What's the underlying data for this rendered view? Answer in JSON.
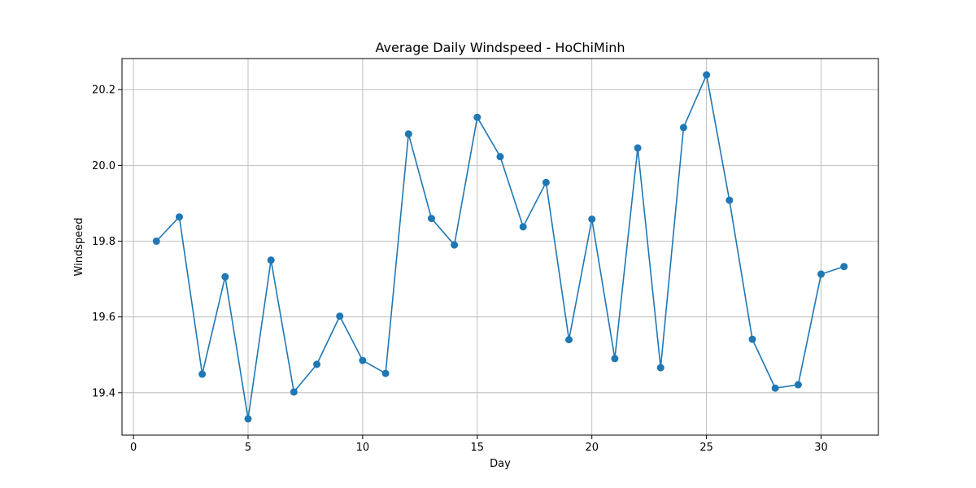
{
  "chart_data": {
    "type": "line",
    "title": "Average Daily Windspeed - HoChiMinh",
    "xlabel": "Day",
    "ylabel": "Windspeed",
    "xlim": [
      -0.5,
      32.5
    ],
    "ylim": [
      19.288,
      20.282
    ],
    "xticks": [
      0,
      5,
      10,
      15,
      20,
      25,
      30
    ],
    "yticks": [
      19.4,
      19.6,
      19.8,
      20.0,
      20.2
    ],
    "grid": true,
    "marker": "circle",
    "color": "#1f77b4",
    "x": [
      1,
      2,
      3,
      4,
      5,
      6,
      7,
      8,
      9,
      10,
      11,
      12,
      13,
      14,
      15,
      16,
      17,
      18,
      19,
      20,
      21,
      22,
      23,
      24,
      25,
      26,
      27,
      28,
      29,
      30,
      31
    ],
    "y": [
      19.8,
      19.864,
      19.449,
      19.706,
      19.331,
      19.75,
      19.402,
      19.475,
      19.602,
      19.485,
      19.451,
      20.083,
      19.86,
      19.79,
      20.127,
      20.023,
      19.838,
      19.955,
      19.54,
      19.858,
      19.49,
      20.046,
      19.466,
      20.1,
      20.239,
      19.908,
      19.541,
      19.412,
      19.421,
      19.713,
      19.733
    ]
  }
}
